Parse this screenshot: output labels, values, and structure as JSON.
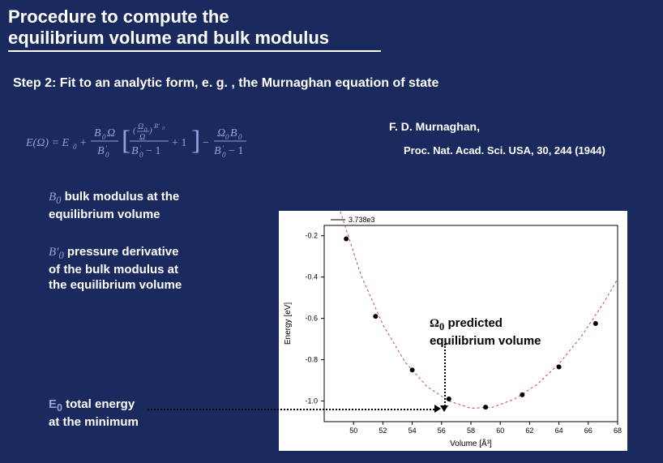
{
  "title": {
    "line1": "Procedure to compute the",
    "line2": "equilibrium volume and bulk modulus"
  },
  "step": "Step 2: Fit to an analytic form, e. g. , the Murnaghan equation of state",
  "citation_author": "F. D. Murnaghan,",
  "citation_ref": "Proc. Nat. Acad. Sci. USA, 30, 244 (1944)",
  "definitions": {
    "b0": {
      "symbol": "B₀",
      "text_l1": "bulk modulus at the",
      "text_l2": "equilibrium volume"
    },
    "b0p": {
      "symbol": "B′₀",
      "text_l1": "pressure derivative",
      "text_l2": "of the bulk modulus at",
      "text_l3": "the equilibrium volume"
    },
    "e0": {
      "symbol": "E₀",
      "text_l1": "total energy",
      "text_l2": "at the minimum"
    }
  },
  "annotation": {
    "symbol": "Ω₀",
    "text_l1": "predicted",
    "text_l2": "equilibrium volume"
  },
  "equation_text": "E(Ω) = E₀ + (B₀Ω / B′₀) [ ((Ω₀/Ω)^{B′₀}) / (B′₀ − 1) + 1 ] − (Ω₀B₀) / (B′₀ − 1)",
  "chart": {
    "type": "scatter+line",
    "xlabel": "Volume [Å³]",
    "ylabel": "Energy [eV]",
    "xlim": [
      48,
      68
    ],
    "ylim": [
      -1.1,
      -0.15
    ],
    "xticks": [
      50,
      52,
      54,
      56,
      58,
      60,
      62,
      64,
      66,
      68
    ],
    "yticks": [
      -0.2,
      -0.4,
      -0.6,
      -0.8,
      -1.0
    ],
    "background_color": "#ffffff",
    "axis_color": "#000000",
    "tick_fontsize": 9,
    "label_fontsize": 10,
    "top_label": "3.738e3",
    "points": {
      "x": [
        49.5,
        51.5,
        54.0,
        56.5,
        59.0,
        61.5,
        64.0,
        66.5
      ],
      "y": [
        -0.215,
        -0.59,
        -0.85,
        -0.99,
        -1.03,
        -0.97,
        -0.835,
        -0.625
      ],
      "marker": "circle",
      "marker_size": 4,
      "marker_color": "#000000"
    },
    "fit_curve": {
      "color": "#cc4444",
      "dash": "3,3",
      "width": 1,
      "x": [
        49.0,
        50.5,
        52.0,
        53.5,
        55.0,
        56.5,
        58.0,
        59.5,
        61.0,
        62.5,
        64.0,
        65.5,
        67.0,
        68.0
      ],
      "y": [
        -0.06,
        -0.39,
        -0.63,
        -0.81,
        -0.93,
        -1.0,
        -1.035,
        -1.03,
        -0.99,
        -0.92,
        -0.82,
        -0.69,
        -0.53,
        -0.41
      ]
    },
    "minimum_x": 58.4,
    "minimum_y": -1.035
  },
  "colors": {
    "slide_bg": "#1a2a5e",
    "text": "#ffffff",
    "equation_fg": "#6688dd",
    "chart_bg": "#ffffff"
  }
}
